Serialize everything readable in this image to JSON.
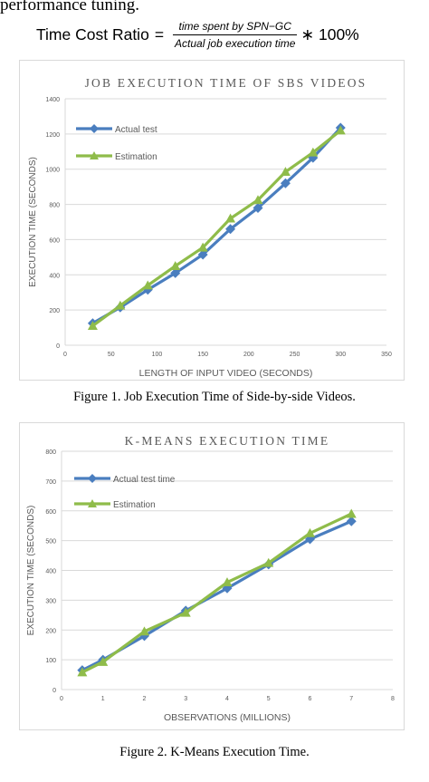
{
  "paper": {
    "top_line_text": "performance tuning.",
    "formula": {
      "lhs": "Time Cost Ratio",
      "equals": "=",
      "numerator": "time spent by SPN−GC",
      "denominator": "Actual job execution time",
      "rhs": "∗ 100%"
    },
    "caption1": "Figure 1.    Job Execution Time of Side-by-side Videos.",
    "caption2": "Figure 2.    K-Means Execution Time."
  },
  "colors": {
    "actual": "#4a7ebf",
    "estimation": "#8fbc4a",
    "grid": "#d9d9d9",
    "axis_text": "#595959"
  },
  "chart_data": [
    {
      "type": "line",
      "title": "JOB EXECUTION TIME OF SBS VIDEOS",
      "xlabel": "LENGTH OF  INPUT VIDEO (SECONDS)",
      "ylabel": "EXECUTION  TIME  (SECONDS)",
      "xlim": [
        0,
        350
      ],
      "ylim": [
        0,
        1400
      ],
      "xticks": [
        0,
        50,
        100,
        150,
        200,
        250,
        300,
        350
      ],
      "yticks": [
        0,
        200,
        400,
        600,
        800,
        1000,
        1200,
        1400
      ],
      "grid": true,
      "legend_position": "top-left",
      "x": [
        30,
        60,
        90,
        120,
        150,
        180,
        210,
        240,
        270,
        300
      ],
      "series": [
        {
          "name": "Actual test",
          "marker": "diamond",
          "values": [
            125,
            215,
            315,
            410,
            515,
            660,
            780,
            920,
            1065,
            1235
          ]
        },
        {
          "name": "Estimation",
          "marker": "triangle",
          "values": [
            110,
            225,
            340,
            450,
            555,
            720,
            825,
            985,
            1095,
            1220
          ]
        }
      ]
    },
    {
      "type": "line",
      "title": "K-MEANS EXECUTION TIME",
      "xlabel": "OBSERVATIONS (MILLIONS)",
      "ylabel": "EXECUTION TIME (SECONDS)",
      "xlim": [
        0,
        8
      ],
      "ylim": [
        0,
        800
      ],
      "xticks": [
        0,
        1,
        2,
        3,
        4,
        5,
        6,
        7,
        8
      ],
      "yticks": [
        0,
        100,
        200,
        300,
        400,
        500,
        600,
        700,
        800
      ],
      "grid": true,
      "legend_position": "top-left",
      "x": [
        0.5,
        1,
        2,
        3,
        4,
        5,
        6,
        7
      ],
      "series": [
        {
          "name": "Actual test time",
          "marker": "diamond",
          "values": [
            65,
            100,
            180,
            265,
            340,
            420,
            505,
            565
          ]
        },
        {
          "name": "Estimation",
          "marker": "triangle",
          "values": [
            58,
            93,
            195,
            258,
            360,
            425,
            525,
            590
          ]
        }
      ]
    }
  ]
}
